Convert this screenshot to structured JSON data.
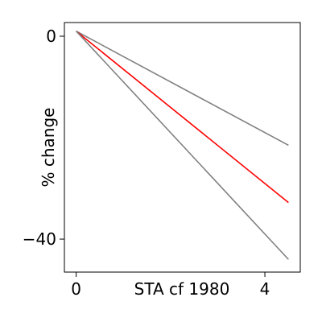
{
  "chart_data": {
    "type": "line",
    "xlabel": "STA cf 1980",
    "ylabel": "% change",
    "xlim": [
      -0.25,
      4.75
    ],
    "ylim": [
      -46.5,
      2.7
    ],
    "xticks": [
      0,
      4
    ],
    "xtick_labels": [
      "0",
      "4"
    ],
    "yticks": [
      0,
      -40
    ],
    "ytick_labels": [
      "0",
      "−40"
    ],
    "grid": false,
    "series": [
      {
        "color": "#808080",
        "x": [
          0,
          4.5
        ],
        "y": [
          1.0,
          -21.5
        ]
      },
      {
        "color": "#ff0000",
        "x": [
          0,
          4.5
        ],
        "y": [
          1.0,
          -32.8
        ]
      },
      {
        "color": "#808080",
        "x": [
          0,
          4.5
        ],
        "y": [
          1.0,
          -44.0
        ]
      }
    ]
  }
}
